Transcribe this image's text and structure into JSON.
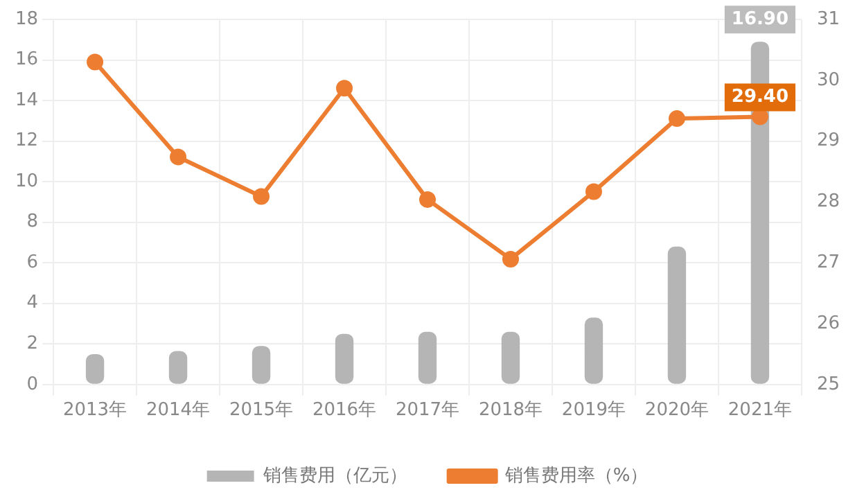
{
  "chart_data": {
    "type": "bar",
    "categories": [
      "2013年",
      "2014年",
      "2015年",
      "2016年",
      "2017年",
      "2018年",
      "2019年",
      "2020年",
      "2021年"
    ],
    "series": [
      {
        "name": "销售费用（亿元）",
        "color": "#b4b5b4",
        "values": [
          1.5,
          1.65,
          1.9,
          2.5,
          2.6,
          2.6,
          3.3,
          6.8,
          16.9
        ],
        "value_labels": [
          null,
          null,
          null,
          null,
          null,
          null,
          null,
          null,
          "16.90"
        ]
      },
      {
        "name": "销售费用率（%）",
        "type": "line",
        "axis": "y2",
        "color": "#ed7d31",
        "marker": "circle",
        "values": [
          30.3,
          28.74,
          28.09,
          29.87,
          28.04,
          27.06,
          28.17,
          29.37,
          29.4
        ],
        "value_labels": [
          null,
          null,
          null,
          null,
          null,
          null,
          null,
          null,
          "29.40"
        ]
      }
    ],
    "ylim": [
      0,
      18
    ],
    "yticks": [
      0,
      2,
      4,
      6,
      8,
      10,
      12,
      14,
      16,
      18
    ],
    "y2lim": [
      25,
      31
    ],
    "y2ticks": [
      25,
      26,
      27,
      28,
      29,
      30,
      31
    ],
    "grid": true,
    "legend": "bottom"
  }
}
